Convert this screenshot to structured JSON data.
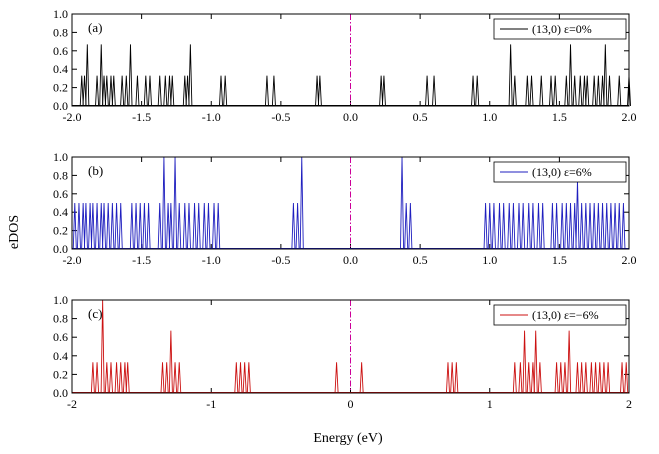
{
  "chart_data": {
    "type": "line",
    "shared": {
      "xlabel": "Energy (eV)",
      "ylabel": "eDOS",
      "ylim": [
        0,
        1.0
      ],
      "yticks": [
        0.0,
        0.2,
        0.4,
        0.6,
        0.8,
        1.0
      ],
      "ytick_labels": [
        "0.0",
        "0.2",
        "0.4",
        "0.6",
        "0.8",
        "1.0"
      ],
      "fermi_line_x": 0,
      "fermi_line_color": "#cc0099",
      "legend_position": "top-right"
    },
    "panels": [
      {
        "label": "(a)",
        "series_name": "(13,0)  ε=0%",
        "color": "#000000",
        "xlim": [
          -2.0,
          2.0
        ],
        "xticks": [
          -2.0,
          -1.5,
          -1.0,
          -0.5,
          0.0,
          0.5,
          1.0,
          1.5,
          2.0
        ],
        "xtick_labels": [
          "-2.0",
          "-1.5",
          "-1.0",
          "-0.5",
          "0.0",
          "0.5",
          "1.0",
          "1.5",
          "2.0"
        ],
        "peaks": [
          {
            "x": -1.93,
            "y": 0.33
          },
          {
            "x": -1.91,
            "y": 0.33
          },
          {
            "x": -1.89,
            "y": 0.67
          },
          {
            "x": -1.82,
            "y": 0.33
          },
          {
            "x": -1.79,
            "y": 0.67
          },
          {
            "x": -1.77,
            "y": 0.33
          },
          {
            "x": -1.75,
            "y": 0.33
          },
          {
            "x": -1.72,
            "y": 0.33
          },
          {
            "x": -1.7,
            "y": 0.33
          },
          {
            "x": -1.64,
            "y": 0.33
          },
          {
            "x": -1.61,
            "y": 0.33
          },
          {
            "x": -1.58,
            "y": 0.67
          },
          {
            "x": -1.53,
            "y": 0.33
          },
          {
            "x": -1.47,
            "y": 0.33
          },
          {
            "x": -1.44,
            "y": 0.33
          },
          {
            "x": -1.37,
            "y": 0.33
          },
          {
            "x": -1.33,
            "y": 0.33
          },
          {
            "x": -1.3,
            "y": 0.33
          },
          {
            "x": -1.28,
            "y": 0.33
          },
          {
            "x": -1.19,
            "y": 0.33
          },
          {
            "x": -1.17,
            "y": 0.33
          },
          {
            "x": -1.15,
            "y": 0.67
          },
          {
            "x": -0.93,
            "y": 0.33
          },
          {
            "x": -0.9,
            "y": 0.33
          },
          {
            "x": -0.6,
            "y": 0.33
          },
          {
            "x": -0.55,
            "y": 0.33
          },
          {
            "x": -0.24,
            "y": 0.33
          },
          {
            "x": -0.22,
            "y": 0.33
          },
          {
            "x": 0.22,
            "y": 0.33
          },
          {
            "x": 0.24,
            "y": 0.33
          },
          {
            "x": 0.55,
            "y": 0.33
          },
          {
            "x": 0.6,
            "y": 0.33
          },
          {
            "x": 0.88,
            "y": 0.33
          },
          {
            "x": 0.91,
            "y": 0.33
          },
          {
            "x": 1.15,
            "y": 0.67
          },
          {
            "x": 1.18,
            "y": 0.33
          },
          {
            "x": 1.27,
            "y": 0.33
          },
          {
            "x": 1.3,
            "y": 0.33
          },
          {
            "x": 1.37,
            "y": 0.33
          },
          {
            "x": 1.44,
            "y": 0.33
          },
          {
            "x": 1.47,
            "y": 0.33
          },
          {
            "x": 1.55,
            "y": 0.33
          },
          {
            "x": 1.58,
            "y": 0.67
          },
          {
            "x": 1.61,
            "y": 0.33
          },
          {
            "x": 1.65,
            "y": 0.33
          },
          {
            "x": 1.68,
            "y": 0.33
          },
          {
            "x": 1.7,
            "y": 0.33
          },
          {
            "x": 1.75,
            "y": 0.33
          },
          {
            "x": 1.78,
            "y": 0.33
          },
          {
            "x": 1.81,
            "y": 0.33
          },
          {
            "x": 1.83,
            "y": 0.67
          },
          {
            "x": 1.86,
            "y": 0.33
          },
          {
            "x": 1.93,
            "y": 0.33
          },
          {
            "x": 2.0,
            "y": 0.33
          }
        ]
      },
      {
        "label": "(b)",
        "series_name": "(13,0)  ε=6%",
        "color": "#1f1fbf",
        "xlim": [
          -2.0,
          2.0
        ],
        "xticks": [
          -2.0,
          -1.5,
          -1.0,
          -0.5,
          0.0,
          0.5,
          1.0,
          1.5,
          2.0
        ],
        "xtick_labels": [
          "-2.0",
          "-1.5",
          "-1.0",
          "-0.5",
          "0.0",
          "0.5",
          "1.0",
          "1.5",
          "2.0"
        ],
        "peaks": [
          {
            "x": -1.98,
            "y": 0.5
          },
          {
            "x": -1.95,
            "y": 0.5
          },
          {
            "x": -1.92,
            "y": 0.5
          },
          {
            "x": -1.9,
            "y": 0.5
          },
          {
            "x": -1.87,
            "y": 0.5
          },
          {
            "x": -1.85,
            "y": 0.5
          },
          {
            "x": -1.82,
            "y": 0.5
          },
          {
            "x": -1.79,
            "y": 0.5
          },
          {
            "x": -1.77,
            "y": 0.5
          },
          {
            "x": -1.74,
            "y": 0.5
          },
          {
            "x": -1.71,
            "y": 0.5
          },
          {
            "x": -1.68,
            "y": 0.5
          },
          {
            "x": -1.65,
            "y": 0.5
          },
          {
            "x": -1.57,
            "y": 0.5
          },
          {
            "x": -1.54,
            "y": 0.5
          },
          {
            "x": -1.51,
            "y": 0.5
          },
          {
            "x": -1.48,
            "y": 0.5
          },
          {
            "x": -1.45,
            "y": 0.5
          },
          {
            "x": -1.37,
            "y": 0.5
          },
          {
            "x": -1.34,
            "y": 1.0
          },
          {
            "x": -1.31,
            "y": 0.5
          },
          {
            "x": -1.29,
            "y": 0.5
          },
          {
            "x": -1.26,
            "y": 1.0
          },
          {
            "x": -1.23,
            "y": 0.5
          },
          {
            "x": -1.19,
            "y": 0.5
          },
          {
            "x": -1.16,
            "y": 0.5
          },
          {
            "x": -1.12,
            "y": 0.5
          },
          {
            "x": -1.09,
            "y": 0.5
          },
          {
            "x": -1.05,
            "y": 0.5
          },
          {
            "x": -1.02,
            "y": 0.5
          },
          {
            "x": -0.98,
            "y": 0.5
          },
          {
            "x": -0.95,
            "y": 0.5
          },
          {
            "x": -0.41,
            "y": 0.5
          },
          {
            "x": -0.38,
            "y": 0.5
          },
          {
            "x": -0.35,
            "y": 1.0
          },
          {
            "x": 0.37,
            "y": 1.0
          },
          {
            "x": 0.4,
            "y": 0.5
          },
          {
            "x": 0.43,
            "y": 0.5
          },
          {
            "x": 0.97,
            "y": 0.5
          },
          {
            "x": 1.0,
            "y": 0.5
          },
          {
            "x": 1.03,
            "y": 0.5
          },
          {
            "x": 1.07,
            "y": 0.5
          },
          {
            "x": 1.1,
            "y": 0.5
          },
          {
            "x": 1.14,
            "y": 0.5
          },
          {
            "x": 1.17,
            "y": 0.5
          },
          {
            "x": 1.21,
            "y": 0.5
          },
          {
            "x": 1.24,
            "y": 0.5
          },
          {
            "x": 1.28,
            "y": 0.5
          },
          {
            "x": 1.31,
            "y": 0.5
          },
          {
            "x": 1.35,
            "y": 0.5
          },
          {
            "x": 1.38,
            "y": 0.5
          },
          {
            "x": 1.45,
            "y": 0.5
          },
          {
            "x": 1.48,
            "y": 0.5
          },
          {
            "x": 1.52,
            "y": 0.5
          },
          {
            "x": 1.55,
            "y": 0.5
          },
          {
            "x": 1.58,
            "y": 0.5
          },
          {
            "x": 1.61,
            "y": 0.5
          },
          {
            "x": 1.63,
            "y": 0.75
          },
          {
            "x": 1.66,
            "y": 0.5
          },
          {
            "x": 1.69,
            "y": 0.5
          },
          {
            "x": 1.72,
            "y": 0.5
          },
          {
            "x": 1.75,
            "y": 0.5
          },
          {
            "x": 1.78,
            "y": 0.5
          },
          {
            "x": 1.81,
            "y": 0.5
          },
          {
            "x": 1.84,
            "y": 0.5
          },
          {
            "x": 1.87,
            "y": 0.5
          },
          {
            "x": 1.9,
            "y": 0.5
          },
          {
            "x": 1.93,
            "y": 0.5
          },
          {
            "x": 1.96,
            "y": 0.5
          }
        ]
      },
      {
        "label": "(c)",
        "series_name": "(13,0)  ε=−6%",
        "color": "#cc1111",
        "xlim": [
          -2,
          2
        ],
        "xticks": [
          -2,
          -1,
          0,
          1,
          2
        ],
        "xtick_labels": [
          "-2",
          "-1",
          "0",
          "1",
          "2"
        ],
        "peaks": [
          {
            "x": -1.85,
            "y": 0.33
          },
          {
            "x": -1.82,
            "y": 0.33
          },
          {
            "x": -1.78,
            "y": 1.0
          },
          {
            "x": -1.75,
            "y": 0.33
          },
          {
            "x": -1.72,
            "y": 0.33
          },
          {
            "x": -1.68,
            "y": 0.33
          },
          {
            "x": -1.65,
            "y": 0.33
          },
          {
            "x": -1.62,
            "y": 0.33
          },
          {
            "x": -1.6,
            "y": 0.33
          },
          {
            "x": -1.35,
            "y": 0.33
          },
          {
            "x": -1.32,
            "y": 0.33
          },
          {
            "x": -1.29,
            "y": 0.67
          },
          {
            "x": -1.26,
            "y": 0.33
          },
          {
            "x": -1.23,
            "y": 0.33
          },
          {
            "x": -0.82,
            "y": 0.33
          },
          {
            "x": -0.79,
            "y": 0.33
          },
          {
            "x": -0.76,
            "y": 0.33
          },
          {
            "x": -0.73,
            "y": 0.33
          },
          {
            "x": -0.1,
            "y": 0.33
          },
          {
            "x": 0.08,
            "y": 0.33
          },
          {
            "x": 0.7,
            "y": 0.33
          },
          {
            "x": 0.73,
            "y": 0.33
          },
          {
            "x": 0.76,
            "y": 0.33
          },
          {
            "x": 1.18,
            "y": 0.33
          },
          {
            "x": 1.22,
            "y": 0.33
          },
          {
            "x": 1.25,
            "y": 0.67
          },
          {
            "x": 1.28,
            "y": 0.33
          },
          {
            "x": 1.31,
            "y": 0.33
          },
          {
            "x": 1.33,
            "y": 0.67
          },
          {
            "x": 1.36,
            "y": 0.33
          },
          {
            "x": 1.48,
            "y": 0.33
          },
          {
            "x": 1.51,
            "y": 0.33
          },
          {
            "x": 1.54,
            "y": 0.33
          },
          {
            "x": 1.57,
            "y": 0.67
          },
          {
            "x": 1.63,
            "y": 0.33
          },
          {
            "x": 1.66,
            "y": 0.33
          },
          {
            "x": 1.69,
            "y": 0.33
          },
          {
            "x": 1.73,
            "y": 0.33
          },
          {
            "x": 1.76,
            "y": 0.33
          },
          {
            "x": 1.79,
            "y": 0.33
          },
          {
            "x": 1.82,
            "y": 0.33
          },
          {
            "x": 1.85,
            "y": 0.33
          },
          {
            "x": 1.95,
            "y": 0.33
          },
          {
            "x": 1.98,
            "y": 0.33
          }
        ]
      }
    ]
  }
}
